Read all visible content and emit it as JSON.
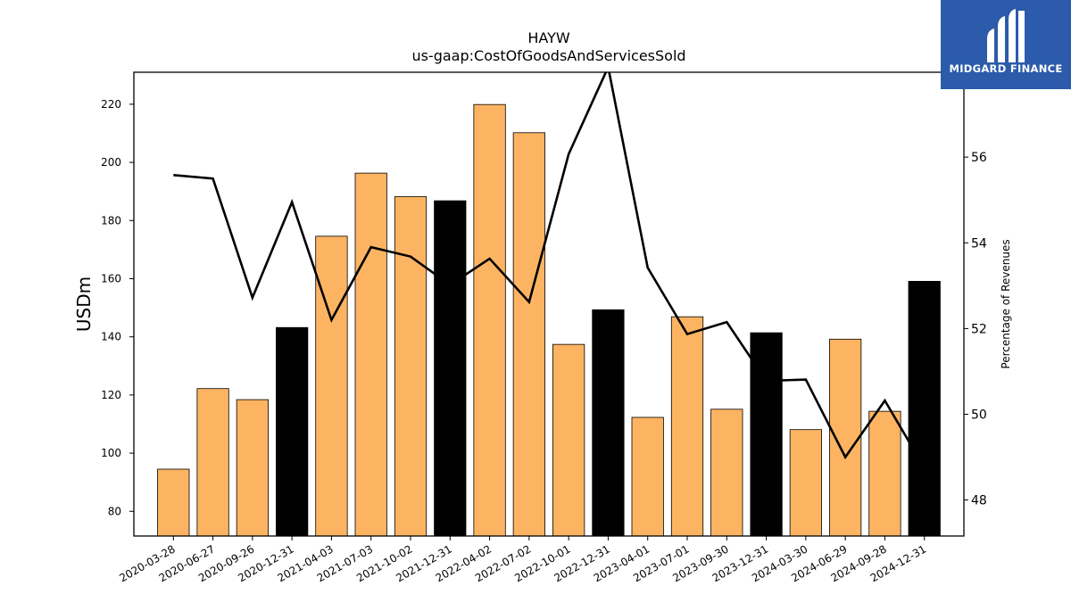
{
  "chart_data": {
    "type": "bar",
    "title": "HAYW",
    "subtitle": "us-gaap:CostOfGoodsAndServicesSold",
    "ylabel": "USDm",
    "y2label": "Percentage of Revenues",
    "ylim": [
      71.5,
      231
    ],
    "y2lim": [
      47.16,
      57.98
    ],
    "yticks": [
      80,
      100,
      120,
      140,
      160,
      180,
      200,
      220
    ],
    "y2ticks": [
      48,
      50,
      52,
      54,
      56
    ],
    "grid": false,
    "categories": [
      "2020-03-28",
      "2020-06-27",
      "2020-09-26",
      "2020-12-31",
      "2021-04-03",
      "2021-07-03",
      "2021-10-02",
      "2021-12-31",
      "2022-04-02",
      "2022-07-02",
      "2022-10-01",
      "2022-12-31",
      "2023-04-01",
      "2023-07-01",
      "2023-09-30",
      "2023-12-31",
      "2024-03-30",
      "2024-06-29",
      "2024-09-28",
      "2024-12-31"
    ],
    "series": [
      {
        "kind": "bar",
        "axis": "left",
        "values": [
          94.5,
          122.2,
          118.4,
          143.2,
          174.6,
          196.3,
          188.2,
          186.8,
          219.9,
          210.2,
          137.4,
          149.3,
          112.3,
          146.9,
          115.1,
          141.4,
          108.1,
          139.2,
          114.4,
          159.1
        ],
        "colors": [
          "#FDB462",
          "#FDB462",
          "#FDB462",
          "#000000",
          "#FDB462",
          "#FDB462",
          "#FDB462",
          "#000000",
          "#FDB462",
          "#FDB462",
          "#FDB462",
          "#000000",
          "#FDB462",
          "#FDB462",
          "#FDB462",
          "#000000",
          "#FDB462",
          "#FDB462",
          "#FDB462",
          "#000000"
        ]
      },
      {
        "kind": "line",
        "axis": "right",
        "color": "#000000",
        "values": [
          55.58,
          55.5,
          52.72,
          54.95,
          52.2,
          53.9,
          53.68,
          53.02,
          53.63,
          52.62,
          56.07,
          58.1,
          53.42,
          51.87,
          52.15,
          50.78,
          50.81,
          49.0,
          50.32,
          48.75
        ]
      }
    ]
  },
  "logo": {
    "name": "MIDGARD FINANCE",
    "bg_color": "#2B5BAA"
  }
}
